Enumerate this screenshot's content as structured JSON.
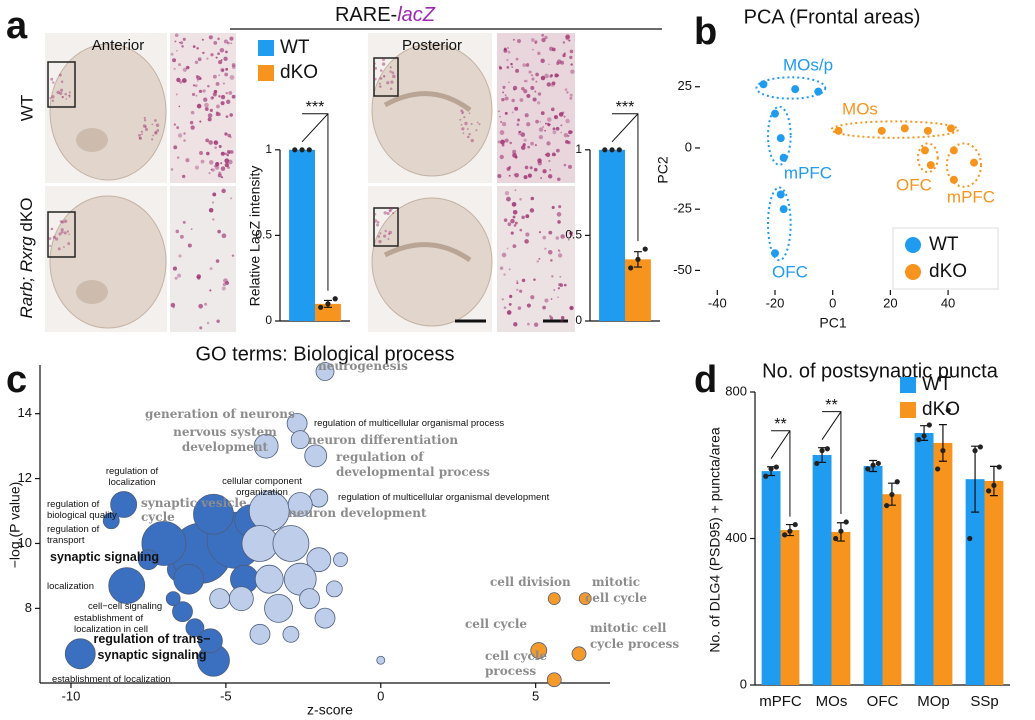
{
  "panel_labels": [
    "a",
    "b",
    "c",
    "d"
  ],
  "figure_a": {
    "title": "RARE-",
    "title_gene": "lacZ",
    "sections": [
      "Anterior",
      "Posterior"
    ],
    "genotype_wt": "WT",
    "genotype_ko_genes": "Rarb; Rxrg",
    "genotype_ko_suffix": "dKO"
  },
  "chart_data": [
    {
      "type": "bar",
      "ylabel": "Relative LacZ intensity",
      "categories": [
        null
      ],
      "series": [
        {
          "name": "WT",
          "color": "#1f9bf0",
          "values": [
            1
          ],
          "points": [
            [
              1,
              1,
              1
            ]
          ]
        },
        {
          "name": "dKO",
          "color": "#f7941d",
          "values": [
            0.1
          ],
          "errors": [
            0.02
          ],
          "points": [
            [
              0.08,
              0.1,
              0.13
            ]
          ]
        }
      ],
      "significance": [
        "***"
      ],
      "ylim": [
        0,
        1.25
      ],
      "yticks": [
        0,
        0.5,
        1
      ],
      "legend": "upper-left"
    },
    {
      "type": "bar",
      "categories": [
        null
      ],
      "series": [
        {
          "color": "#1f9bf0",
          "values": [
            1
          ],
          "points": [
            [
              1,
              1,
              1
            ]
          ]
        },
        {
          "color": "#f7941d",
          "values": [
            0.36
          ],
          "errors": [
            0.045
          ],
          "points": [
            [
              0.31,
              0.36,
              0.42
            ]
          ]
        }
      ],
      "significance": [
        "***"
      ],
      "ylim": [
        0,
        1.25
      ],
      "yticks": [
        0,
        0.5,
        1
      ]
    },
    {
      "type": "scatter",
      "title": "PCA (Frontal areas)",
      "xlabel": "PC1",
      "ylabel": "PC2",
      "xlim": [
        -46,
        58
      ],
      "ylim": [
        -58,
        40
      ],
      "xticks": [
        -40,
        -20,
        0,
        20,
        40
      ],
      "yticks": [
        -50,
        -25,
        0,
        25
      ],
      "legend": "lower-right",
      "series": [
        {
          "name": "WT",
          "color": "#1f9bf0",
          "clusters": [
            {
              "label": "MOs/p",
              "x": [
                -24,
                -13,
                -5
              ],
              "y": [
                26,
                24,
                23
              ]
            },
            {
              "label": "mPFC",
              "x": [
                -20,
                -18,
                -17
              ],
              "y": [
                14,
                4,
                -4
              ]
            },
            {
              "label": "OFC",
              "x": [
                -18,
                -17,
                -20
              ],
              "y": [
                -19,
                -25,
                -43
              ]
            }
          ]
        },
        {
          "name": "dKO",
          "color": "#f7941d",
          "clusters": [
            {
              "label": "MOs",
              "x": [
                2,
                17,
                25,
                33,
                41
              ],
              "y": [
                7,
                7,
                8,
                7,
                8
              ]
            },
            {
              "label": "OFC",
              "x": [
                32,
                34
              ],
              "y": [
                -1,
                -7
              ]
            },
            {
              "label": "mPFC",
              "x": [
                42,
                49,
                42
              ],
              "y": [
                -1,
                -6,
                -13
              ]
            }
          ]
        }
      ]
    },
    {
      "type": "bubble",
      "title": "GO terms: Biological process",
      "xlabel": "z-score",
      "ylabel": "−log (P value)",
      "xlim": [
        -11,
        7.4
      ],
      "ylim": [
        5.7,
        15.5
      ],
      "xticks": [
        -10,
        -5,
        0,
        5
      ],
      "yticks": [
        8,
        10,
        12,
        14
      ],
      "series": [
        {
          "color": "#3b70c0",
          "x": [
            -9.7,
            -8.2,
            -8.3,
            -8.7,
            -6.5,
            -6.4,
            -6.0,
            -5.4,
            -5.5,
            -6.7,
            -5.8,
            -4.7,
            -7.0,
            -5.4,
            -4.2,
            -6.2,
            -4.4,
            -7.5
          ],
          "values": [
            6.6,
            8.7,
            11.2,
            10.7,
            9.2,
            7.9,
            7.4,
            6.4,
            7.0,
            8.3,
            9.7,
            10.1,
            10.0,
            10.9,
            10.7,
            8.9,
            8.9,
            9.5
          ],
          "sizes": [
            15,
            18,
            13,
            8,
            12,
            10,
            9,
            16,
            12,
            7,
            30,
            28,
            22,
            20,
            16,
            15,
            14,
            10
          ]
        },
        {
          "color": "#bdcdea",
          "x": [
            -1.8,
            -2.7,
            -2.6,
            -3.7,
            -2.1,
            -2.0,
            -3.6,
            -2.6,
            -3.9,
            -2.9,
            -2.0,
            -2.6,
            -3.6,
            -4.5,
            -3.3,
            -2.3,
            -1.8,
            -2.9,
            -3.9,
            -1.5,
            -1.3,
            -5.2,
            0.0
          ],
          "values": [
            15.3,
            13.7,
            13.2,
            13.0,
            12.7,
            11.4,
            11.0,
            11.2,
            10.0,
            10.0,
            9.5,
            8.9,
            8.9,
            8.3,
            8.0,
            8.3,
            7.7,
            7.2,
            7.2,
            8.6,
            9.5,
            8.3,
            6.4
          ],
          "sizes": [
            9,
            10,
            9,
            12,
            11,
            9,
            20,
            12,
            18,
            18,
            12,
            16,
            14,
            12,
            14,
            10,
            10,
            8,
            10,
            8,
            7,
            10,
            4
          ]
        },
        {
          "color": "#f39a2a",
          "x": [
            5.6,
            6.6,
            5.1,
            6.4,
            5.6
          ],
          "values": [
            8.3,
            8.3,
            6.7,
            6.6,
            5.8
          ],
          "sizes": [
            6,
            6,
            8,
            7,
            7
          ]
        }
      ],
      "annotations": [
        [
          "neurogenesis"
        ],
        [
          "generation of neurons"
        ],
        [
          "nervous system",
          "development"
        ],
        [
          "regulation of multicellular organismal process"
        ],
        [
          "neuron differentiation"
        ],
        [
          "regulation of",
          "developmental process"
        ],
        [
          "cellular component",
          "organization"
        ],
        [
          "regulation of multicellular organismal development"
        ],
        [
          "neuron development"
        ],
        [
          "regulation of",
          "localization"
        ],
        [
          "synaptic vesicle",
          "cycle"
        ],
        [
          "regulation of",
          "biological quality"
        ],
        [
          "regulation of",
          "transport"
        ],
        [
          "synaptic signaling"
        ],
        [
          "localization"
        ],
        [
          "cell−cell signaling"
        ],
        [
          "establishment of",
          "localization in cell"
        ],
        [
          "regulation of trans−",
          "synaptic signaling"
        ],
        [
          "establishment of localization"
        ],
        [
          "cell division"
        ],
        [
          "mitotic",
          "cell cycle"
        ],
        [
          "cell cycle"
        ],
        [
          "mitotic cell",
          "cycle process"
        ],
        [
          "cell cycle",
          "process"
        ]
      ]
    },
    {
      "type": "bar",
      "title": "No. of postsynaptic puncta",
      "ylabel": "No. of DLG4 (PSD95) + puncta/area",
      "categories": [
        "mPFC",
        "MOs",
        "OFC",
        "MOp",
        "SSp"
      ],
      "series": [
        {
          "name": "WT",
          "color": "#1f9bf0",
          "values": [
            584,
            628,
            598,
            688,
            562
          ],
          "errors": [
            12,
            20,
            15,
            20,
            90
          ],
          "points": [
            [
              570,
              590,
              595
            ],
            [
              605,
              640,
              645
            ],
            [
              590,
              600,
              605
            ],
            [
              670,
              680,
              710
            ],
            [
              400,
              640,
              650
            ]
          ]
        },
        {
          "name": "dKO",
          "color": "#f7941d",
          "values": [
            423,
            418,
            521,
            661,
            557
          ],
          "errors": [
            15,
            25,
            30,
            50,
            40
          ],
          "points": [
            [
              410,
              420,
              438
            ],
            [
              400,
              420,
              445
            ],
            [
              490,
              520,
              555
            ],
            [
              590,
              640,
              750
            ],
            [
              530,
              545,
              595
            ]
          ]
        }
      ],
      "significance": [
        "**",
        "**",
        null,
        null,
        null
      ],
      "ylim": [
        0,
        800
      ],
      "yticks": [
        0,
        400,
        800
      ],
      "legend": "upper-right"
    }
  ]
}
